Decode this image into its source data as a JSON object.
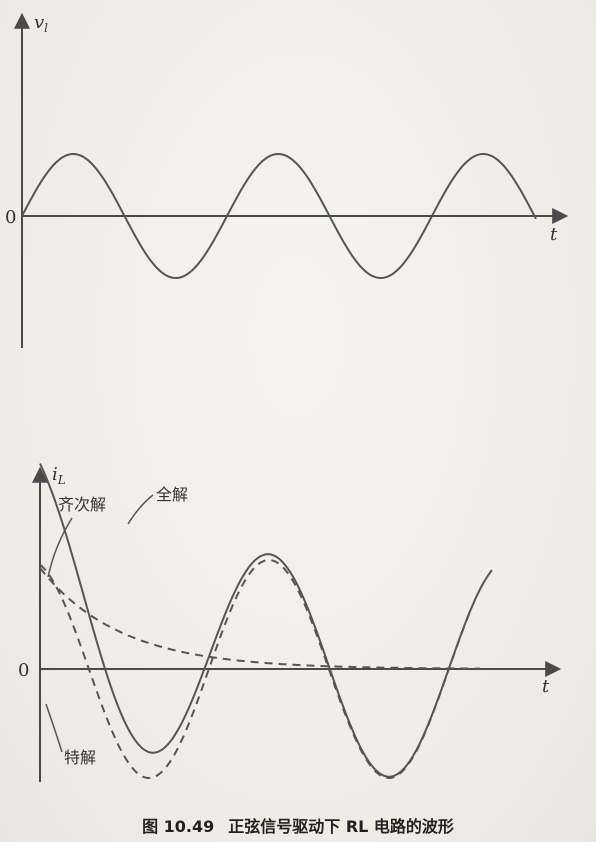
{
  "top_chart": {
    "y_label_main": "v",
    "y_label_sub": "l",
    "x_label": "t",
    "origin_label": "0"
  },
  "bottom_chart": {
    "y_label_main": "i",
    "y_label_sub": "L",
    "x_label": "t",
    "origin_label": "0",
    "label_homogeneous": "齐次解",
    "label_total": "全解",
    "label_particular": "特解"
  },
  "caption": {
    "number": "图 10.49",
    "text": "正弦信号驱动下 RL 电路的波形"
  }
}
